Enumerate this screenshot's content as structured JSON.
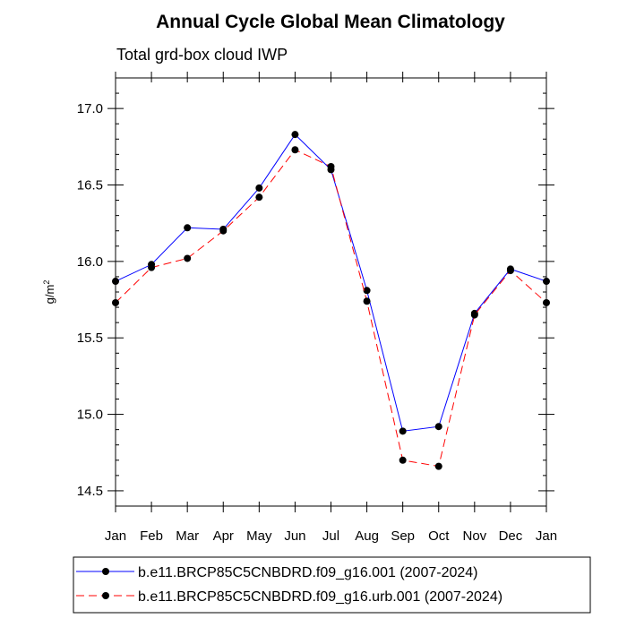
{
  "chart_data": {
    "type": "line",
    "title": "Annual Cycle Global Mean Climatology",
    "subtitle": "Total grd-box cloud IWP",
    "ylabel": "g/m",
    "ylabel_sup": "2",
    "categories": [
      "Jan",
      "Feb",
      "Mar",
      "Apr",
      "May",
      "Jun",
      "Jul",
      "Aug",
      "Sep",
      "Oct",
      "Nov",
      "Dec",
      "Jan"
    ],
    "ylim": [
      14.4,
      17.2
    ],
    "yticks": [
      14.5,
      15.0,
      15.5,
      16.0,
      16.5,
      17.0
    ],
    "ytick_labels": [
      "14.5",
      "15.0",
      "15.5",
      "16.0",
      "16.5",
      "17.0"
    ],
    "series": [
      {
        "name": "b.e11.BRCP85C5CNBDRD.f09_g16.001 (2007-2024)",
        "color": "#0000ff",
        "dash": "solid",
        "values": [
          15.87,
          15.98,
          16.22,
          16.21,
          16.48,
          16.83,
          16.6,
          15.81,
          14.89,
          14.92,
          15.66,
          15.95,
          15.87
        ]
      },
      {
        "name": "b.e11.BRCP85C5CNBDRD.f09_g16.urb.001 (2007-2024)",
        "color": "#ff0000",
        "dash": "dashed",
        "values": [
          15.73,
          15.96,
          16.02,
          16.2,
          16.42,
          16.73,
          16.62,
          15.74,
          14.7,
          14.66,
          15.65,
          15.94,
          15.73
        ]
      }
    ],
    "legend_position": "bottom"
  }
}
